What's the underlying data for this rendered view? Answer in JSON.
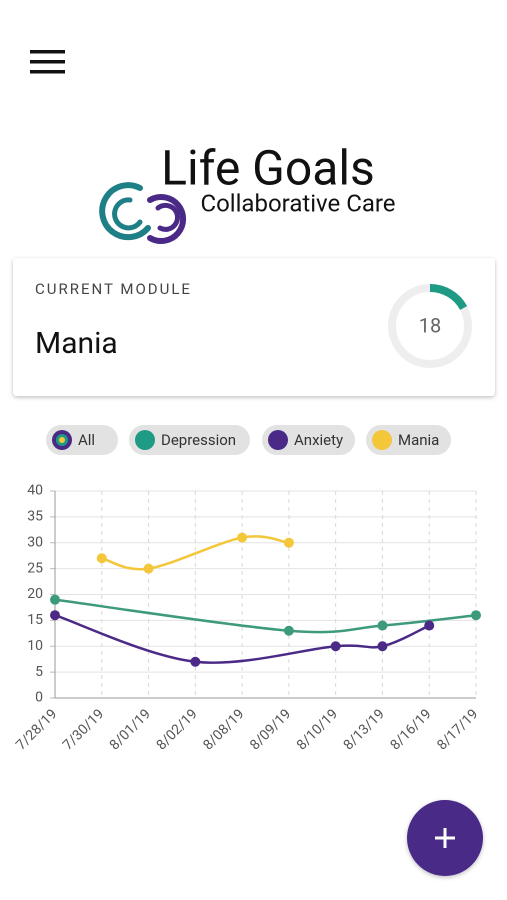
{
  "header": {
    "logo_title": "Life Goals",
    "logo_subtitle": "Collaborative Care"
  },
  "module_card": {
    "label": "CURRENT MODULE",
    "name": "Mania",
    "progress": 18
  },
  "filters": [
    {
      "label": "All",
      "color": "#4a2a86"
    },
    {
      "label": "Depression",
      "color": "#1f9a84"
    },
    {
      "label": "Anxiety",
      "color": "#4a2a86"
    },
    {
      "label": "Mania",
      "color": "#f4c63a"
    }
  ],
  "chart_data": {
    "type": "line",
    "categories": [
      "7/28/19",
      "7/30/19",
      "8/01/19",
      "8/02/19",
      "8/08/19",
      "8/09/19",
      "8/10/19",
      "8/13/19",
      "8/16/19",
      "8/17/19"
    ],
    "ylim": [
      0,
      40
    ],
    "yticks": [
      0,
      5,
      10,
      15,
      20,
      25,
      30,
      35,
      40
    ],
    "grid": true,
    "series": [
      {
        "name": "Depression",
        "color": "#3d9a7c",
        "values": [
          19,
          null,
          null,
          null,
          null,
          13,
          null,
          14,
          null,
          16
        ]
      },
      {
        "name": "Anxiety",
        "color": "#4a2a86",
        "values": [
          16,
          null,
          null,
          7,
          null,
          null,
          10,
          10,
          14,
          null
        ]
      },
      {
        "name": "Mania",
        "color": "#f4c63a",
        "values": [
          null,
          27,
          25,
          null,
          31,
          30,
          null,
          null,
          null,
          null
        ]
      }
    ]
  }
}
